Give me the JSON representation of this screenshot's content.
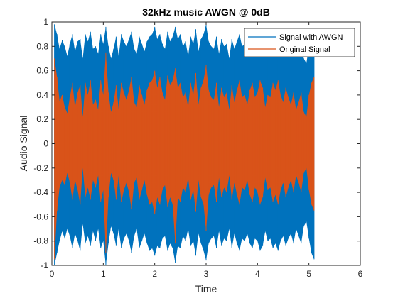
{
  "chart_data": {
    "type": "line",
    "title": "32kHz music AWGN @ 0dB",
    "xlabel": "Time",
    "ylabel": "Audio Signal",
    "xlim": [
      0,
      6
    ],
    "ylim": [
      -1,
      1
    ],
    "xticks": [
      "0",
      "1",
      "2",
      "3",
      "4",
      "5",
      "6"
    ],
    "yticks": [
      "-1",
      "-0.8",
      "-0.6",
      "-0.4",
      "-0.2",
      "0",
      "0.2",
      "0.4",
      "0.6",
      "0.8",
      "1"
    ],
    "grid": false,
    "legend_position": "top-right",
    "series": [
      {
        "name": "Signal with AWGN",
        "color": "#0072BD",
        "x": [
          0.05,
          0.1,
          0.15,
          0.2,
          0.25,
          0.3,
          0.35,
          0.4,
          0.45,
          0.5,
          0.55,
          0.6,
          0.65,
          0.7,
          0.75,
          0.8,
          0.85,
          0.9,
          0.95,
          1.0,
          1.05,
          1.1,
          1.15,
          1.2,
          1.25,
          1.3,
          1.35,
          1.4,
          1.45,
          1.5,
          1.55,
          1.6,
          1.65,
          1.7,
          1.75,
          1.8,
          1.85,
          1.9,
          1.95,
          2.0,
          2.05,
          2.1,
          2.15,
          2.2,
          2.25,
          2.3,
          2.35,
          2.4,
          2.45,
          2.5,
          2.55,
          2.6,
          2.65,
          2.7,
          2.75,
          2.8,
          2.85,
          2.9,
          2.95,
          3.0,
          3.05,
          3.1,
          3.15,
          3.2,
          3.25,
          3.3,
          3.35,
          3.4,
          3.45,
          3.5,
          3.55,
          3.6,
          3.65,
          3.7,
          3.75,
          3.8,
          3.85,
          3.9,
          3.95,
          4.0,
          4.05,
          4.1,
          4.15,
          4.2,
          4.25,
          4.3,
          4.35,
          4.4,
          4.45,
          4.5,
          4.55,
          4.6,
          4.65,
          4.7,
          4.75,
          4.8,
          4.85,
          4.9,
          4.95,
          5.0,
          5.05,
          5.1
        ],
        "upper": [
          0.98,
          0.9,
          0.78,
          0.85,
          0.8,
          0.72,
          0.82,
          0.9,
          0.76,
          0.84,
          0.86,
          0.7,
          0.9,
          0.84,
          0.92,
          0.78,
          0.8,
          0.74,
          0.9,
          0.82,
          0.96,
          0.8,
          0.7,
          0.78,
          0.88,
          0.72,
          0.9,
          0.84,
          0.8,
          0.86,
          0.92,
          0.78,
          0.74,
          0.88,
          0.82,
          0.76,
          0.84,
          0.88,
          0.9,
          0.96,
          0.86,
          0.9,
          0.82,
          0.78,
          0.92,
          0.84,
          0.88,
          0.96,
          0.86,
          0.9,
          0.8,
          0.84,
          0.72,
          0.88,
          0.82,
          0.94,
          0.76,
          0.86,
          0.9,
          0.98,
          0.84,
          0.8,
          0.78,
          0.88,
          0.74,
          0.86,
          0.8,
          0.82,
          0.7,
          0.86,
          0.78,
          0.84,
          0.9,
          0.8,
          0.82,
          0.76,
          0.84,
          0.88,
          0.8,
          0.84,
          0.9,
          0.86,
          0.74,
          0.82,
          0.8,
          0.88,
          0.84,
          0.9,
          0.82,
          0.78,
          0.86,
          0.8,
          0.76,
          0.84,
          0.72,
          0.78,
          0.84,
          0.7,
          0.66,
          0.8,
          0.9,
          0.95
        ],
        "lower": [
          -1.0,
          -0.9,
          -0.8,
          -0.72,
          -0.78,
          -0.7,
          -0.76,
          -0.86,
          -0.74,
          -0.8,
          -0.88,
          -0.66,
          -0.82,
          -0.76,
          -0.84,
          -0.72,
          -0.8,
          -0.7,
          -0.86,
          -0.8,
          -1.0,
          -0.82,
          -0.68,
          -0.74,
          -0.84,
          -0.7,
          -0.86,
          -0.78,
          -0.74,
          -0.8,
          -0.9,
          -0.76,
          -0.7,
          -0.86,
          -0.8,
          -0.74,
          -0.82,
          -0.88,
          -0.86,
          -0.92,
          -0.84,
          -0.86,
          -0.78,
          -0.76,
          -0.88,
          -0.82,
          -0.86,
          -0.98,
          -0.84,
          -0.86,
          -0.76,
          -0.8,
          -0.7,
          -0.84,
          -0.8,
          -0.92,
          -0.74,
          -0.82,
          -0.88,
          -0.96,
          -0.82,
          -0.78,
          -0.76,
          -0.86,
          -0.72,
          -0.84,
          -0.78,
          -0.8,
          -0.7,
          -0.86,
          -0.74,
          -0.82,
          -0.88,
          -0.78,
          -0.8,
          -0.74,
          -0.82,
          -0.86,
          -0.78,
          -0.8,
          -0.88,
          -0.84,
          -0.72,
          -0.8,
          -0.78,
          -0.86,
          -0.82,
          -0.88,
          -0.8,
          -0.76,
          -0.84,
          -0.78,
          -0.74,
          -0.82,
          -0.7,
          -0.76,
          -0.82,
          -0.68,
          -0.64,
          -0.78,
          -0.9,
          -0.95
        ]
      },
      {
        "name": "Original Signal",
        "color": "#D95319",
        "x": [
          0.05,
          0.1,
          0.15,
          0.2,
          0.25,
          0.3,
          0.35,
          0.4,
          0.45,
          0.5,
          0.55,
          0.6,
          0.65,
          0.7,
          0.75,
          0.8,
          0.85,
          0.9,
          0.95,
          1.0,
          1.05,
          1.1,
          1.15,
          1.2,
          1.25,
          1.3,
          1.35,
          1.4,
          1.45,
          1.5,
          1.55,
          1.6,
          1.65,
          1.7,
          1.75,
          1.8,
          1.85,
          1.9,
          1.95,
          2.0,
          2.05,
          2.1,
          2.15,
          2.2,
          2.25,
          2.3,
          2.35,
          2.4,
          2.45,
          2.5,
          2.55,
          2.6,
          2.65,
          2.7,
          2.75,
          2.8,
          2.85,
          2.9,
          2.95,
          3.0,
          3.05,
          3.1,
          3.15,
          3.2,
          3.25,
          3.3,
          3.35,
          3.4,
          3.45,
          3.5,
          3.55,
          3.6,
          3.65,
          3.7,
          3.75,
          3.8,
          3.85,
          3.9,
          3.95,
          4.0,
          4.05,
          4.1,
          4.15,
          4.2,
          4.25,
          4.3,
          4.35,
          4.4,
          4.45,
          4.5,
          4.55,
          4.6,
          4.65,
          4.7,
          4.75,
          4.8,
          4.85,
          4.9,
          4.95,
          5.0,
          5.05,
          5.1
        ],
        "upper": [
          0.7,
          0.55,
          0.35,
          0.4,
          0.3,
          0.25,
          0.38,
          0.5,
          0.3,
          0.42,
          0.48,
          0.22,
          0.5,
          0.4,
          0.52,
          0.32,
          0.36,
          0.28,
          0.52,
          0.4,
          0.75,
          0.42,
          0.26,
          0.34,
          0.48,
          0.28,
          0.5,
          0.42,
          0.36,
          0.44,
          0.55,
          0.34,
          0.3,
          0.48,
          0.4,
          0.32,
          0.44,
          0.5,
          0.52,
          0.6,
          0.46,
          0.55,
          0.42,
          0.36,
          0.56,
          0.48,
          0.52,
          0.62,
          0.46,
          0.5,
          0.38,
          0.42,
          0.3,
          0.5,
          0.4,
          0.58,
          0.32,
          0.46,
          0.52,
          0.65,
          0.44,
          0.38,
          0.36,
          0.5,
          0.3,
          0.46,
          0.38,
          0.42,
          0.28,
          0.48,
          0.34,
          0.44,
          0.52,
          0.38,
          0.4,
          0.32,
          0.44,
          0.5,
          0.38,
          0.42,
          0.52,
          0.46,
          0.3,
          0.4,
          0.38,
          0.5,
          0.44,
          0.52,
          0.4,
          0.34,
          0.46,
          0.38,
          0.32,
          0.42,
          0.28,
          0.34,
          0.42,
          0.26,
          0.22,
          0.4,
          0.5,
          0.55
        ],
        "lower": [
          -0.95,
          -0.55,
          -0.36,
          -0.3,
          -0.34,
          -0.24,
          -0.32,
          -0.46,
          -0.3,
          -0.38,
          -0.5,
          -0.2,
          -0.44,
          -0.36,
          -0.46,
          -0.3,
          -0.36,
          -0.26,
          -0.48,
          -0.38,
          -0.9,
          -0.44,
          -0.24,
          -0.3,
          -0.46,
          -0.26,
          -0.48,
          -0.38,
          -0.32,
          -0.4,
          -0.54,
          -0.32,
          -0.28,
          -0.46,
          -0.38,
          -0.3,
          -0.42,
          -0.5,
          -0.48,
          -0.58,
          -0.44,
          -0.5,
          -0.38,
          -0.34,
          -0.52,
          -0.44,
          -0.5,
          -0.82,
          -0.44,
          -0.48,
          -0.36,
          -0.4,
          -0.28,
          -0.46,
          -0.38,
          -0.56,
          -0.3,
          -0.44,
          -0.5,
          -0.72,
          -0.42,
          -0.36,
          -0.34,
          -0.48,
          -0.28,
          -0.44,
          -0.36,
          -0.4,
          -0.26,
          -0.46,
          -0.32,
          -0.42,
          -0.5,
          -0.36,
          -0.38,
          -0.3,
          -0.42,
          -0.48,
          -0.36,
          -0.4,
          -0.5,
          -0.44,
          -0.28,
          -0.38,
          -0.36,
          -0.48,
          -0.42,
          -0.5,
          -0.38,
          -0.32,
          -0.44,
          -0.36,
          -0.3,
          -0.4,
          -0.26,
          -0.32,
          -0.4,
          -0.24,
          -0.2,
          -0.38,
          -0.5,
          -0.55
        ]
      }
    ]
  }
}
